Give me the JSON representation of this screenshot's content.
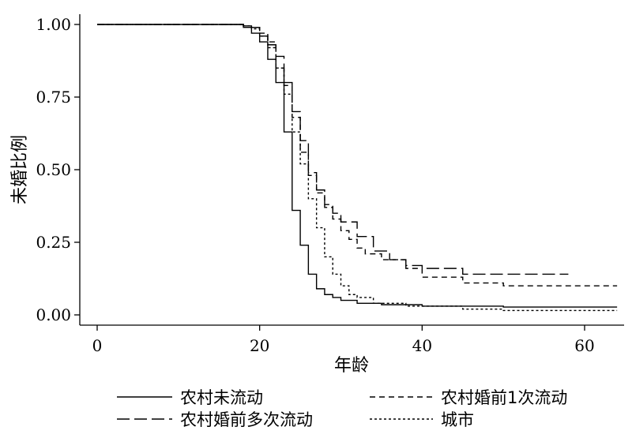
{
  "chart_data": {
    "type": "line",
    "title": "",
    "xlabel": "年龄",
    "ylabel": "未婚比例",
    "xlim": [
      0,
      65
    ],
    "ylim": [
      0,
      1
    ],
    "x_ticks": [
      0,
      20,
      40,
      60
    ],
    "y_ticks": [
      0.0,
      0.25,
      0.5,
      0.75,
      1.0
    ],
    "x_tick_labels": [
      "0",
      "20",
      "40",
      "60"
    ],
    "y_tick_labels": [
      "0.00",
      "0.25",
      "0.50",
      "0.75",
      "1.00"
    ],
    "grid": false,
    "legend_position": "bottom",
    "series": [
      {
        "name": "农村未流动",
        "dash": "solid",
        "points": [
          [
            0,
            1.0
          ],
          [
            17,
            1.0
          ],
          [
            18,
            0.99
          ],
          [
            19,
            0.97
          ],
          [
            20,
            0.94
          ],
          [
            21,
            0.88
          ],
          [
            22,
            0.8
          ],
          [
            23,
            0.63
          ],
          [
            24,
            0.36
          ],
          [
            25,
            0.24
          ],
          [
            26,
            0.14
          ],
          [
            27,
            0.09
          ],
          [
            28,
            0.07
          ],
          [
            29,
            0.06
          ],
          [
            30,
            0.05
          ],
          [
            32,
            0.04
          ],
          [
            35,
            0.035
          ],
          [
            40,
            0.03
          ],
          [
            50,
            0.027
          ],
          [
            64,
            0.027
          ]
        ]
      },
      {
        "name": "农村婚前1次流动",
        "dash": "short",
        "points": [
          [
            0,
            1.0
          ],
          [
            17,
            1.0
          ],
          [
            18,
            0.995
          ],
          [
            19,
            0.99
          ],
          [
            20,
            0.97
          ],
          [
            21,
            0.94
          ],
          [
            22,
            0.85
          ],
          [
            23,
            0.79
          ],
          [
            24,
            0.68
          ],
          [
            25,
            0.56
          ],
          [
            26,
            0.48
          ],
          [
            27,
            0.42
          ],
          [
            28,
            0.37
          ],
          [
            29,
            0.33
          ],
          [
            30,
            0.29
          ],
          [
            31,
            0.26
          ],
          [
            32,
            0.23
          ],
          [
            33,
            0.21
          ],
          [
            35,
            0.19
          ],
          [
            38,
            0.16
          ],
          [
            40,
            0.13
          ],
          [
            45,
            0.11
          ],
          [
            50,
            0.1
          ],
          [
            64,
            0.1
          ]
        ]
      },
      {
        "name": "农村婚前多次流动",
        "dash": "long",
        "points": [
          [
            0,
            1.0
          ],
          [
            17,
            1.0
          ],
          [
            18,
            0.995
          ],
          [
            19,
            0.99
          ],
          [
            20,
            0.96
          ],
          [
            21,
            0.93
          ],
          [
            22,
            0.89
          ],
          [
            23,
            0.8
          ],
          [
            24,
            0.7
          ],
          [
            25,
            0.6
          ],
          [
            26,
            0.49
          ],
          [
            27,
            0.43
          ],
          [
            28,
            0.38
          ],
          [
            29,
            0.35
          ],
          [
            30,
            0.32
          ],
          [
            32,
            0.27
          ],
          [
            34,
            0.22
          ],
          [
            36,
            0.19
          ],
          [
            38,
            0.17
          ],
          [
            40,
            0.16
          ],
          [
            45,
            0.14
          ],
          [
            50,
            0.14
          ],
          [
            58,
            0.14
          ]
        ]
      },
      {
        "name": "城市",
        "dash": "dotted",
        "points": [
          [
            0,
            1.0
          ],
          [
            17,
            1.0
          ],
          [
            18,
            0.995
          ],
          [
            19,
            0.985
          ],
          [
            20,
            0.96
          ],
          [
            21,
            0.92
          ],
          [
            22,
            0.85
          ],
          [
            23,
            0.76
          ],
          [
            24,
            0.63
          ],
          [
            25,
            0.52
          ],
          [
            26,
            0.4
          ],
          [
            27,
            0.3
          ],
          [
            28,
            0.2
          ],
          [
            29,
            0.14
          ],
          [
            30,
            0.1
          ],
          [
            31,
            0.07
          ],
          [
            32,
            0.06
          ],
          [
            34,
            0.04
          ],
          [
            38,
            0.03
          ],
          [
            45,
            0.02
          ],
          [
            50,
            0.015
          ],
          [
            64,
            0.015
          ]
        ]
      }
    ]
  }
}
